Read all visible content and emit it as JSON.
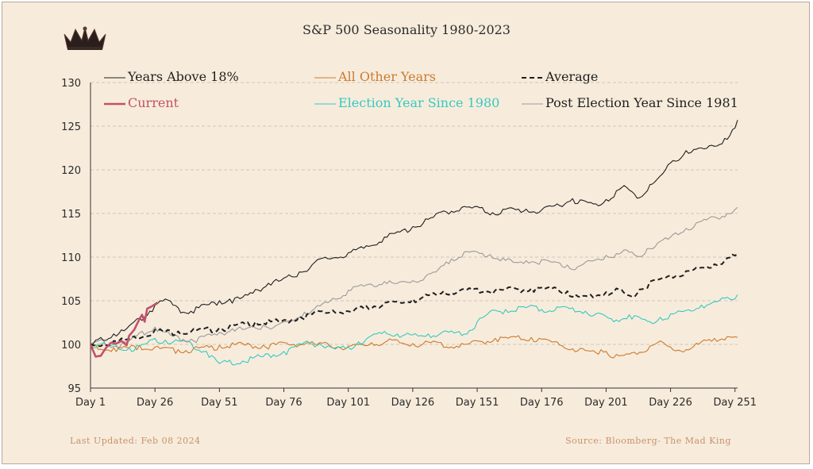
{
  "colors": {
    "years_above": "#1f1f1f",
    "all_other": "#cc7a2e",
    "average": "#1f1f1f",
    "current": "#c4506a",
    "election": "#35c9c1",
    "post_election": "#9a9a9a",
    "grid": "#cfc6b8",
    "background": "#f7ecdc"
  },
  "icons": {
    "logo": "crown-icon"
  },
  "footer": {
    "updated": "Last Updated: Feb 08 2024",
    "source": "Source: Bloomberg- The Mad King"
  },
  "chart_data": {
    "type": "line",
    "title": "S&P 500 Seasonality 1980-2023",
    "xlabel": "",
    "ylabel": "",
    "xlim": [
      1,
      252
    ],
    "ylim": [
      95,
      130
    ],
    "y_ticks": [
      95,
      100,
      105,
      110,
      115,
      120,
      125,
      130
    ],
    "x_ticks": [
      1,
      26,
      51,
      76,
      101,
      126,
      151,
      176,
      201,
      226,
      251
    ],
    "x_tick_labels": [
      "Day 1",
      "Day 26",
      "Day 51",
      "Day 76",
      "Day 101",
      "Day 126",
      "Day 151",
      "Day 176",
      "Day 201",
      "Day 226",
      "Day 251"
    ],
    "grid": "horizontal dashed",
    "legend": "top",
    "series": [
      {
        "name": "Years Above 18%",
        "key": "years_above",
        "style": "solid",
        "points": [
          [
            1,
            100
          ],
          [
            5,
            100.8
          ],
          [
            10,
            101.2
          ],
          [
            15,
            101.8
          ],
          [
            20,
            103
          ],
          [
            26,
            104.5
          ],
          [
            30,
            105.2
          ],
          [
            35,
            104.2
          ],
          [
            40,
            103.8
          ],
          [
            45,
            104.6
          ],
          [
            51,
            105
          ],
          [
            55,
            105.2
          ],
          [
            60,
            105.4
          ],
          [
            65,
            106.3
          ],
          [
            70,
            107
          ],
          [
            76,
            107.6
          ],
          [
            82,
            108.3
          ],
          [
            90,
            109.8
          ],
          [
            101,
            110.5
          ],
          [
            108,
            111.3
          ],
          [
            115,
            112.3
          ],
          [
            120,
            112.9
          ],
          [
            126,
            113.5
          ],
          [
            133,
            114.5
          ],
          [
            138,
            115.3
          ],
          [
            145,
            115.7
          ],
          [
            151,
            115.8
          ],
          [
            157,
            115.1
          ],
          [
            163,
            115.6
          ],
          [
            170,
            115.5
          ],
          [
            176,
            115.4
          ],
          [
            182,
            116.1
          ],
          [
            188,
            116.7
          ],
          [
            193,
            116.4
          ],
          [
            197,
            116.1
          ],
          [
            201,
            116.6
          ],
          [
            205,
            117.6
          ],
          [
            208,
            118.2
          ],
          [
            211,
            117.5
          ],
          [
            214,
            116.8
          ],
          [
            218,
            118.3
          ],
          [
            222,
            119.3
          ],
          [
            226,
            120.8
          ],
          [
            232,
            122.2
          ],
          [
            238,
            122.5
          ],
          [
            243,
            122.7
          ],
          [
            247,
            123.6
          ],
          [
            251,
            124.8
          ],
          [
            252,
            125.7
          ]
        ]
      },
      {
        "name": "All Other Years",
        "key": "all_other",
        "style": "solid",
        "points": [
          [
            1,
            100
          ],
          [
            10,
            99.6
          ],
          [
            20,
            99.9
          ],
          [
            26,
            99.7
          ],
          [
            35,
            99.4
          ],
          [
            45,
            99.7
          ],
          [
            51,
            99.9
          ],
          [
            60,
            100.1
          ],
          [
            68,
            99.9
          ],
          [
            76,
            100.2
          ],
          [
            85,
            100.2
          ],
          [
            93,
            100.1
          ],
          [
            101,
            99.8
          ],
          [
            110,
            100.2
          ],
          [
            118,
            100.5
          ],
          [
            126,
            100.1
          ],
          [
            135,
            100.3
          ],
          [
            143,
            99.8
          ],
          [
            151,
            100.4
          ],
          [
            158,
            100.7
          ],
          [
            165,
            100.9
          ],
          [
            172,
            100.8
          ],
          [
            176,
            100.6
          ],
          [
            182,
            100.3
          ],
          [
            188,
            99.5
          ],
          [
            193,
            99.3
          ],
          [
            199,
            99.4
          ],
          [
            201,
            99.2
          ],
          [
            206,
            98.7
          ],
          [
            212,
            99.1
          ],
          [
            218,
            99.8
          ],
          [
            222,
            100.4
          ],
          [
            226,
            99.7
          ],
          [
            232,
            99.4
          ],
          [
            238,
            100.3
          ],
          [
            243,
            100.7
          ],
          [
            248,
            100.9
          ],
          [
            252,
            100.8
          ]
        ]
      },
      {
        "name": "Average",
        "key": "average",
        "style": "dashed",
        "points": [
          [
            1,
            100
          ],
          [
            10,
            100.4
          ],
          [
            18,
            100.9
          ],
          [
            26,
            101.7
          ],
          [
            35,
            101.5
          ],
          [
            45,
            101.8
          ],
          [
            51,
            101.9
          ],
          [
            58,
            102.3
          ],
          [
            65,
            102.6
          ],
          [
            72,
            102.7
          ],
          [
            76,
            102.8
          ],
          [
            82,
            103.2
          ],
          [
            90,
            103.8
          ],
          [
            95,
            103.9
          ],
          [
            101,
            103.8
          ],
          [
            108,
            104.4
          ],
          [
            115,
            104.8
          ],
          [
            120,
            104.9
          ],
          [
            126,
            105.2
          ],
          [
            133,
            105.7
          ],
          [
            138,
            106.1
          ],
          [
            145,
            106.3
          ],
          [
            151,
            106.4
          ],
          [
            158,
            106.2
          ],
          [
            165,
            106.5
          ],
          [
            172,
            106.4
          ],
          [
            176,
            106.5
          ],
          [
            182,
            106.4
          ],
          [
            186,
            106.1
          ],
          [
            191,
            105.4
          ],
          [
            195,
            105.7
          ],
          [
            201,
            106
          ],
          [
            206,
            106.3
          ],
          [
            210,
            105.6
          ],
          [
            214,
            106.3
          ],
          [
            218,
            107.2
          ],
          [
            222,
            107.5
          ],
          [
            226,
            107.9
          ],
          [
            232,
            108.4
          ],
          [
            238,
            108.8
          ],
          [
            243,
            109.2
          ],
          [
            248,
            109.9
          ],
          [
            252,
            110.4
          ]
        ]
      },
      {
        "name": "Current",
        "key": "current",
        "style": "solid-thick",
        "points": [
          [
            1,
            100
          ],
          [
            3,
            98.6
          ],
          [
            5,
            98.7
          ],
          [
            7,
            99.6
          ],
          [
            9,
            100.2
          ],
          [
            11,
            100.1
          ],
          [
            13,
            100.4
          ],
          [
            15,
            99.9
          ],
          [
            16,
            101
          ],
          [
            18,
            101.7
          ],
          [
            20,
            102.9
          ],
          [
            21,
            103.4
          ],
          [
            22,
            102.6
          ],
          [
            23,
            104.1
          ],
          [
            25,
            104.4
          ],
          [
            26,
            104.6
          ],
          [
            27,
            104.8
          ]
        ]
      },
      {
        "name": "Election Year Since 1980",
        "key": "election",
        "style": "solid",
        "points": [
          [
            1,
            100
          ],
          [
            6,
            100.2
          ],
          [
            11,
            99.9
          ],
          [
            16,
            99.6
          ],
          [
            21,
            100
          ],
          [
            26,
            100.7
          ],
          [
            30,
            100.5
          ],
          [
            35,
            100.4
          ],
          [
            40,
            100.2
          ],
          [
            46,
            99.2
          ],
          [
            49,
            98.5
          ],
          [
            51,
            97.8
          ],
          [
            55,
            98.2
          ],
          [
            60,
            98.1
          ],
          [
            65,
            98.6
          ],
          [
            70,
            98.9
          ],
          [
            76,
            99.2
          ],
          [
            80,
            99.7
          ],
          [
            85,
            100.4
          ],
          [
            90,
            100.1
          ],
          [
            95,
            99.6
          ],
          [
            101,
            99.7
          ],
          [
            105,
            100.3
          ],
          [
            110,
            101
          ],
          [
            115,
            101.5
          ],
          [
            120,
            101.2
          ],
          [
            126,
            101.1
          ],
          [
            132,
            101.2
          ],
          [
            138,
            101.5
          ],
          [
            143,
            101.4
          ],
          [
            148,
            101.6
          ],
          [
            151,
            102.6
          ],
          [
            156,
            103.8
          ],
          [
            162,
            104
          ],
          [
            168,
            104.3
          ],
          [
            173,
            104.4
          ],
          [
            176,
            104
          ],
          [
            182,
            104.3
          ],
          [
            188,
            104.2
          ],
          [
            193,
            103.8
          ],
          [
            197,
            103.5
          ],
          [
            201,
            103.2
          ],
          [
            205,
            102.8
          ],
          [
            210,
            103.4
          ],
          [
            214,
            103.1
          ],
          [
            218,
            102.6
          ],
          [
            222,
            103.1
          ],
          [
            226,
            103.5
          ],
          [
            232,
            103.9
          ],
          [
            238,
            104.5
          ],
          [
            243,
            104.9
          ],
          [
            248,
            105.4
          ],
          [
            252,
            105.7
          ]
        ]
      },
      {
        "name": "Post Election Year Since 1981",
        "key": "post_election",
        "style": "solid",
        "points": [
          [
            1,
            100
          ],
          [
            6,
            100.5
          ],
          [
            11,
            99.8
          ],
          [
            16,
            100.4
          ],
          [
            21,
            101.5
          ],
          [
            26,
            102
          ],
          [
            30,
            101.4
          ],
          [
            35,
            100.9
          ],
          [
            40,
            100.6
          ],
          [
            45,
            100.9
          ],
          [
            51,
            101.4
          ],
          [
            56,
            101.8
          ],
          [
            62,
            101.9
          ],
          [
            68,
            102.2
          ],
          [
            74,
            102.3
          ],
          [
            78,
            102.7
          ],
          [
            84,
            103.7
          ],
          [
            90,
            104.4
          ],
          [
            95,
            105.3
          ],
          [
            101,
            106.2
          ],
          [
            105,
            106.7
          ],
          [
            110,
            106.9
          ],
          [
            115,
            107.2
          ],
          [
            120,
            107
          ],
          [
            126,
            107.3
          ],
          [
            131,
            107.8
          ],
          [
            136,
            108.6
          ],
          [
            141,
            109.8
          ],
          [
            146,
            110.6
          ],
          [
            151,
            110.6
          ],
          [
            156,
            110.3
          ],
          [
            161,
            109.9
          ],
          [
            165,
            109.4
          ],
          [
            170,
            109.6
          ],
          [
            176,
            109.7
          ],
          [
            182,
            109.4
          ],
          [
            186,
            109.1
          ],
          [
            190,
            108.9
          ],
          [
            193,
            109.4
          ],
          [
            197,
            109.7
          ],
          [
            201,
            110.2
          ],
          [
            205,
            110.4
          ],
          [
            209,
            110.8
          ],
          [
            213,
            110.1
          ],
          [
            217,
            111
          ],
          [
            222,
            111.8
          ],
          [
            226,
            112.3
          ],
          [
            232,
            113.3
          ],
          [
            238,
            114.1
          ],
          [
            243,
            114.6
          ],
          [
            248,
            115
          ],
          [
            252,
            115.7
          ]
        ]
      }
    ]
  }
}
